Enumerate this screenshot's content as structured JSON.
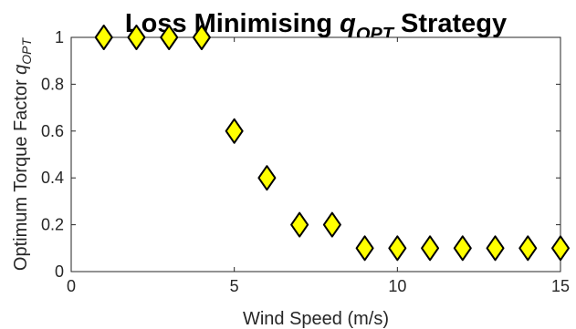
{
  "chart_data": {
    "type": "scatter",
    "title": {
      "prefix": "Loss Minimising ",
      "symbol": "q",
      "subscript": "OPT",
      "suffix": " Strategy"
    },
    "xlabel": "Wind Speed (m/s)",
    "ylabel": {
      "text": "Optimum Torque Factor ",
      "symbol": "q",
      "subscript": "OPT"
    },
    "xlim": [
      0,
      15
    ],
    "ylim": [
      0,
      1
    ],
    "xticks": [
      0,
      5,
      10,
      15
    ],
    "yticks": [
      0,
      0.2,
      0.4,
      0.6,
      0.8,
      1
    ],
    "xtick_labels": [
      "0",
      "5",
      "10",
      "15"
    ],
    "ytick_labels": [
      "0",
      "0.2",
      "0.4",
      "0.6",
      "0.8",
      "1"
    ],
    "grid": false,
    "marker": "diamond",
    "marker_color": "#ffff00",
    "marker_edge_color": "#000000",
    "series": [
      {
        "x": [
          1,
          2,
          3,
          4,
          5,
          6,
          7,
          8,
          9,
          10,
          11,
          12,
          13,
          14,
          15
        ],
        "y": [
          1,
          1,
          1,
          1,
          0.6,
          0.4,
          0.2,
          0.2,
          0.1,
          0.1,
          0.1,
          0.1,
          0.1,
          0.1,
          0.1
        ]
      }
    ]
  }
}
